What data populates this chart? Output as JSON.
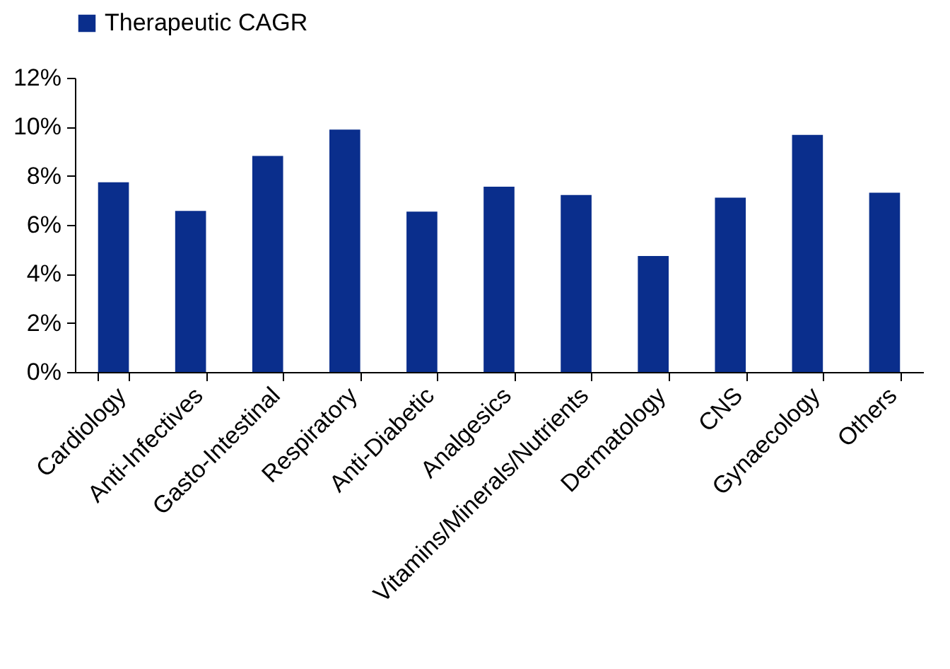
{
  "chart_data": {
    "type": "bar",
    "categories": [
      "Cardiology",
      "Anti-Infectives",
      "Gasto-Intestinal",
      "Respiratory",
      "Anti-Diabetic",
      "Analgesics",
      "Vitamins/Minerals/Nutrients",
      "Dermatology",
      "CNS",
      "Gynaecology",
      "Others"
    ],
    "series": [
      {
        "name": "Therapeutic CAGR",
        "color": "#0a2e8c",
        "values": [
          7.74,
          6.57,
          8.81,
          9.89,
          6.54,
          7.56,
          7.22,
          4.73,
          7.11,
          9.67,
          7.31
        ]
      }
    ],
    "ylim": [
      0,
      12
    ],
    "yticks": [
      {
        "value": 0,
        "label": "0%"
      },
      {
        "value": 2,
        "label": "2%"
      },
      {
        "value": 4,
        "label": "4%"
      },
      {
        "value": 6,
        "label": "6%"
      },
      {
        "value": 8,
        "label": "8%"
      },
      {
        "value": 10,
        "label": "10%"
      },
      {
        "value": 12,
        "label": "12%"
      }
    ],
    "grid": false,
    "legend": "top"
  }
}
